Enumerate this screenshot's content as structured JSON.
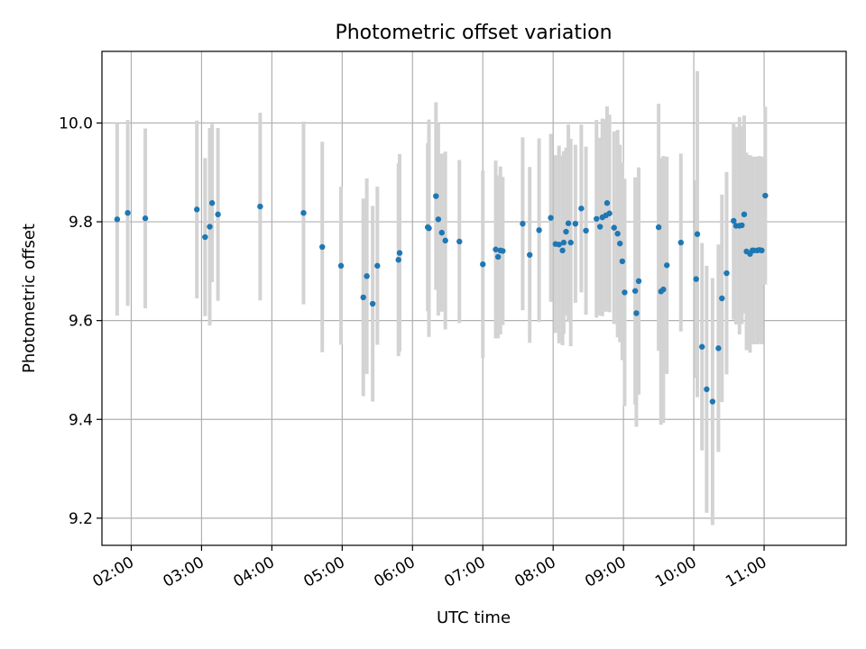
{
  "chart_data": {
    "type": "scatter",
    "title": "Photometric offset variation",
    "xlabel": "UTC time",
    "ylabel": "Photometric offset",
    "grid": true,
    "xlim": [
      "01:35",
      "12:10"
    ],
    "ylim": [
      9.145,
      10.145
    ],
    "x_ticks": [
      "02:00",
      "03:00",
      "04:00",
      "05:00",
      "06:00",
      "07:00",
      "08:00",
      "09:00",
      "10:00",
      "11:00"
    ],
    "y_ticks": [
      "9.2",
      "9.4",
      "9.6",
      "9.8",
      "10.0"
    ],
    "colors": {
      "point": "#1f77b4",
      "errorbar": "#d3d3d3",
      "grid": "#b0b0b0"
    },
    "series": [
      {
        "x": [
          "01:48",
          "01:57",
          "02:12",
          "02:56",
          "03:03",
          "03:07",
          "03:09",
          "03:14",
          "03:50",
          "04:27",
          "04:43",
          "04:59",
          "05:18",
          "05:21",
          "05:26",
          "05:30",
          "05:48",
          "05:49",
          "06:13",
          "06:14",
          "06:20",
          "06:22",
          "06:25",
          "06:28",
          "06:40",
          "07:00",
          "07:11",
          "07:13",
          "07:15",
          "07:17",
          "07:34",
          "07:40",
          "07:48",
          "07:58",
          "08:02",
          "08:05",
          "08:08",
          "08:09",
          "08:11",
          "08:13",
          "08:15",
          "08:19",
          "08:24",
          "08:28",
          "08:37",
          "08:40",
          "08:42",
          "08:45",
          "08:46",
          "08:48",
          "08:52",
          "08:55",
          "08:57",
          "08:59",
          "09:01",
          "09:10",
          "09:11",
          "09:13",
          "09:30",
          "09:32",
          "09:34",
          "09:37",
          "09:49",
          "10:02",
          "10:03",
          "10:07",
          "10:11",
          "10:16",
          "10:21",
          "10:24",
          "10:28",
          "10:34",
          "10:36",
          "10:39",
          "10:41",
          "10:43",
          "10:45",
          "10:48",
          "10:50",
          "10:51",
          "10:54",
          "10:56",
          "10:58",
          "11:01"
        ],
        "y": [
          9.805,
          9.818,
          9.807,
          9.825,
          9.769,
          9.79,
          9.838,
          9.815,
          9.831,
          9.818,
          9.749,
          9.711,
          9.647,
          9.69,
          9.634,
          9.711,
          9.723,
          9.737,
          9.789,
          9.787,
          9.852,
          9.805,
          9.778,
          9.762,
          9.76,
          9.714,
          9.744,
          9.729,
          9.742,
          9.741,
          9.796,
          9.733,
          9.783,
          9.808,
          9.755,
          9.754,
          9.742,
          9.758,
          9.78,
          9.797,
          9.758,
          9.796,
          9.827,
          9.782,
          9.806,
          9.79,
          9.809,
          9.813,
          9.838,
          9.817,
          9.788,
          9.776,
          9.756,
          9.72,
          9.657,
          9.66,
          9.615,
          9.68,
          9.789,
          9.659,
          9.663,
          9.712,
          9.758,
          9.684,
          9.775,
          9.547,
          9.461,
          9.436,
          9.544,
          9.645,
          9.696,
          9.802,
          9.792,
          9.792,
          9.793,
          9.815,
          9.74,
          9.735,
          9.742,
          9.742,
          9.742,
          9.743,
          9.742,
          9.853
        ],
        "err": [
          0.195,
          0.188,
          0.182,
          0.18,
          0.16,
          0.2,
          0.16,
          0.175,
          0.19,
          0.185,
          0.213,
          0.16,
          0.2,
          0.198,
          0.198,
          0.16,
          0.195,
          0.2,
          0.17,
          0.22,
          0.19,
          0.195,
          0.16,
          0.18,
          0.165,
          0.19,
          0.18,
          0.165,
          0.17,
          0.15,
          0.175,
          0.178,
          0.186,
          0.17,
          0.18,
          0.2,
          0.192,
          0.185,
          0.17,
          0.2,
          0.21,
          0.16,
          0.17,
          0.17,
          0.2,
          0.18,
          0.2,
          0.195,
          0.196,
          0.2,
          0.195,
          0.21,
          0.2,
          0.2,
          0.23,
          0.23,
          0.23,
          0.23,
          0.25,
          0.27,
          0.27,
          0.22,
          0.18,
          0.2,
          0.33,
          0.21,
          0.25,
          0.25,
          0.21,
          0.21,
          0.205,
          0.2,
          0.2,
          0.22,
          0.2,
          0.2,
          0.2,
          0.2,
          0.19,
          0.19,
          0.19,
          0.19,
          0.19,
          0.18
        ]
      }
    ]
  }
}
